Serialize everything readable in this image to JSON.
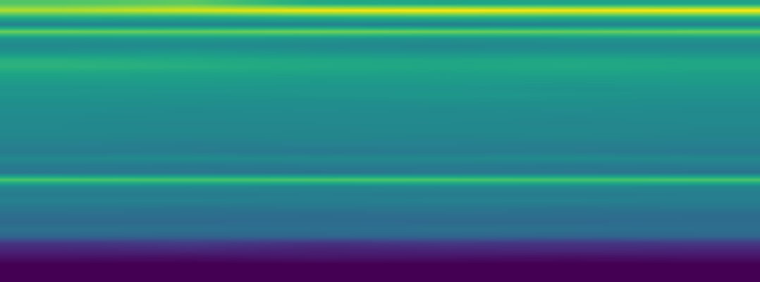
{
  "chart_data": {
    "type": "heatmap",
    "tick_labels": false,
    "cells": [
      [
        0.7,
        0.72,
        0.58,
        0.56,
        0.55,
        0.55
      ],
      [
        0.85,
        0.9,
        0.95,
        0.96,
        0.95,
        0.96
      ],
      [
        0.6,
        0.58,
        0.6,
        0.61,
        0.6,
        0.6
      ],
      [
        0.42,
        0.43,
        0.42,
        0.41,
        0.42,
        0.42
      ],
      [
        0.75,
        0.74,
        0.76,
        0.75,
        0.74,
        0.75
      ],
      [
        0.5,
        0.51,
        0.5,
        0.49,
        0.5,
        0.5
      ],
      [
        0.45,
        0.46,
        0.45,
        0.44,
        0.45,
        0.45
      ],
      [
        0.5,
        0.52,
        0.5,
        0.49,
        0.5,
        0.49
      ],
      [
        0.6,
        0.58,
        0.57,
        0.56,
        0.57,
        0.56
      ],
      [
        0.62,
        0.6,
        0.58,
        0.57,
        0.58,
        0.57
      ],
      [
        0.56,
        0.55,
        0.55,
        0.54,
        0.55,
        0.54
      ],
      [
        0.53,
        0.53,
        0.52,
        0.53,
        0.52,
        0.53
      ],
      [
        0.5,
        0.51,
        0.5,
        0.5,
        0.49,
        0.5
      ],
      [
        0.5,
        0.49,
        0.5,
        0.51,
        0.5,
        0.49
      ],
      [
        0.48,
        0.48,
        0.47,
        0.48,
        0.48,
        0.47
      ],
      [
        0.47,
        0.46,
        0.47,
        0.46,
        0.47,
        0.46
      ],
      [
        0.46,
        0.46,
        0.45,
        0.46,
        0.45,
        0.46
      ],
      [
        0.45,
        0.44,
        0.45,
        0.45,
        0.44,
        0.45
      ],
      [
        0.45,
        0.45,
        0.44,
        0.45,
        0.45,
        0.44
      ],
      [
        0.44,
        0.43,
        0.44,
        0.43,
        0.44,
        0.43
      ],
      [
        0.42,
        0.41,
        0.42,
        0.42,
        0.41,
        0.42
      ],
      [
        0.4,
        0.4,
        0.39,
        0.4,
        0.4,
        0.39
      ],
      [
        0.45,
        0.46,
        0.45,
        0.45,
        0.46,
        0.45
      ],
      [
        0.4,
        0.39,
        0.4,
        0.4,
        0.39,
        0.4
      ],
      [
        0.38,
        0.38,
        0.37,
        0.38,
        0.38,
        0.37
      ],
      [
        0.7,
        0.69,
        0.7,
        0.7,
        0.69,
        0.7
      ],
      [
        0.45,
        0.45,
        0.44,
        0.45,
        0.45,
        0.44
      ],
      [
        0.4,
        0.4,
        0.41,
        0.4,
        0.4,
        0.41
      ],
      [
        0.42,
        0.42,
        0.41,
        0.42,
        0.42,
        0.41
      ],
      [
        0.38,
        0.37,
        0.38,
        0.38,
        0.37,
        0.38
      ],
      [
        0.35,
        0.35,
        0.34,
        0.35,
        0.35,
        0.34
      ],
      [
        0.33,
        0.33,
        0.34,
        0.33,
        0.33,
        0.34
      ],
      [
        0.36,
        0.36,
        0.35,
        0.36,
        0.36,
        0.35
      ],
      [
        0.32,
        0.31,
        0.32,
        0.32,
        0.31,
        0.32
      ],
      [
        0.15,
        0.17,
        0.14,
        0.16,
        0.15,
        0.16
      ],
      [
        0.1,
        0.11,
        0.09,
        0.1,
        0.11,
        0.1
      ],
      [
        0.05,
        0.04,
        0.06,
        0.05,
        0.04,
        0.05
      ],
      [
        0.0,
        0.0,
        0.0,
        0.0,
        0.0,
        0.0
      ],
      [
        0.0,
        0.0,
        0.0,
        0.0,
        0.0,
        0.0
      ],
      [
        0.0,
        0.0,
        0.0,
        0.0,
        0.0,
        0.0
      ]
    ]
  }
}
